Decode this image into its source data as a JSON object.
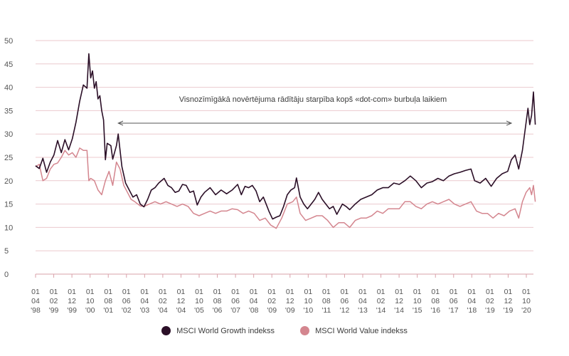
{
  "chart_data": {
    "type": "line",
    "title": "",
    "xlabel": "",
    "ylabel": "",
    "ylim": [
      0,
      50
    ],
    "yticks": [
      0,
      5,
      10,
      15,
      20,
      25,
      30,
      35,
      40,
      45,
      50
    ],
    "grid": true,
    "legend_position": "bottom",
    "annotation": "Visnozīmīgākā novērtējuma rādītāju starpība kopš «dot-com» burbuļa laikiem",
    "x_tick_labels": [
      [
        "01",
        "04",
        "'98"
      ],
      [
        "01",
        "02",
        "'99"
      ],
      [
        "01",
        "12",
        "'99"
      ],
      [
        "01",
        "10",
        "'00"
      ],
      [
        "01",
        "08",
        "'01"
      ],
      [
        "01",
        "06",
        "'02"
      ],
      [
        "01",
        "04",
        "'03"
      ],
      [
        "01",
        "02",
        "'04"
      ],
      [
        "01",
        "12",
        "'04"
      ],
      [
        "01",
        "10",
        "'05"
      ],
      [
        "01",
        "08",
        "'06"
      ],
      [
        "01",
        "06",
        "'07"
      ],
      [
        "01",
        "04",
        "'08"
      ],
      [
        "01",
        "02",
        "'09"
      ],
      [
        "01",
        "12",
        "'09"
      ],
      [
        "01",
        "10",
        "'10"
      ],
      [
        "01",
        "08",
        "'11"
      ],
      [
        "01",
        "06",
        "'12"
      ],
      [
        "01",
        "04",
        "'13"
      ],
      [
        "01",
        "02",
        "'14"
      ],
      [
        "01",
        "12",
        "'14"
      ],
      [
        "01",
        "10",
        "'15"
      ],
      [
        "01",
        "08",
        "'16"
      ],
      [
        "01",
        "06",
        "'17"
      ],
      [
        "01",
        "04",
        "'18"
      ],
      [
        "01",
        "02",
        "'19"
      ],
      [
        "01",
        "12",
        "'19"
      ],
      [
        "01",
        "10",
        "'20"
      ]
    ],
    "x_range": [
      "1998-04",
      "2020-11"
    ],
    "series": [
      {
        "name": "MSCI World Growth indekss",
        "color": "#2b0f27",
        "points": [
          [
            "1998-04",
            23.2
          ],
          [
            "1998-06",
            22.6
          ],
          [
            "1998-08",
            24.8
          ],
          [
            "1998-10",
            21.8
          ],
          [
            "1998-12",
            24.0
          ],
          [
            "1999-02",
            25.5
          ],
          [
            "1999-04",
            28.6
          ],
          [
            "1999-06",
            26.0
          ],
          [
            "1999-08",
            28.8
          ],
          [
            "1999-10",
            26.6
          ],
          [
            "1999-12",
            29.0
          ],
          [
            "2000-02",
            32.5
          ],
          [
            "2000-04",
            37.0
          ],
          [
            "2000-06",
            40.5
          ],
          [
            "2000-08",
            39.8
          ],
          [
            "2000-09",
            47.2
          ],
          [
            "2000-10",
            42.0
          ],
          [
            "2000-11",
            43.5
          ],
          [
            "2000-12",
            39.8
          ],
          [
            "2001-01",
            41.2
          ],
          [
            "2001-02",
            37.5
          ],
          [
            "2001-03",
            38.2
          ],
          [
            "2001-04",
            35.0
          ],
          [
            "2001-05",
            33.0
          ],
          [
            "2001-06",
            24.5
          ],
          [
            "2001-07",
            28.0
          ],
          [
            "2001-09",
            27.5
          ],
          [
            "2001-10",
            24.6
          ],
          [
            "2001-12",
            27.5
          ],
          [
            "2002-01",
            30.0
          ],
          [
            "2002-03",
            23.0
          ],
          [
            "2002-05",
            19.5
          ],
          [
            "2002-07",
            18.0
          ],
          [
            "2002-09",
            16.5
          ],
          [
            "2002-11",
            17.0
          ],
          [
            "2003-01",
            15.0
          ],
          [
            "2003-03",
            14.4
          ],
          [
            "2003-05",
            16.0
          ],
          [
            "2003-07",
            18.0
          ],
          [
            "2003-09",
            18.5
          ],
          [
            "2003-11",
            19.5
          ],
          [
            "2004-02",
            20.5
          ],
          [
            "2004-04",
            19.0
          ],
          [
            "2004-06",
            18.5
          ],
          [
            "2004-08",
            17.5
          ],
          [
            "2004-10",
            17.8
          ],
          [
            "2004-12",
            19.2
          ],
          [
            "2005-02",
            19.0
          ],
          [
            "2005-04",
            17.5
          ],
          [
            "2005-06",
            17.8
          ],
          [
            "2005-08",
            14.8
          ],
          [
            "2005-10",
            16.5
          ],
          [
            "2005-12",
            17.5
          ],
          [
            "2006-03",
            18.5
          ],
          [
            "2006-06",
            17.0
          ],
          [
            "2006-09",
            18.0
          ],
          [
            "2006-12",
            17.2
          ],
          [
            "2007-03",
            18.0
          ],
          [
            "2007-06",
            19.2
          ],
          [
            "2007-08",
            17.0
          ],
          [
            "2007-10",
            18.8
          ],
          [
            "2007-12",
            18.5
          ],
          [
            "2008-02",
            19.0
          ],
          [
            "2008-04",
            17.8
          ],
          [
            "2008-06",
            15.5
          ],
          [
            "2008-08",
            16.5
          ],
          [
            "2008-10",
            14.5
          ],
          [
            "2008-11",
            13.5
          ],
          [
            "2009-01",
            11.8
          ],
          [
            "2009-03",
            12.2
          ],
          [
            "2009-05",
            12.5
          ],
          [
            "2009-07",
            14.5
          ],
          [
            "2009-09",
            17.0
          ],
          [
            "2009-11",
            18.0
          ],
          [
            "2010-01",
            18.5
          ],
          [
            "2010-02",
            20.6
          ],
          [
            "2010-04",
            16.5
          ],
          [
            "2010-06",
            15.0
          ],
          [
            "2010-08",
            14.0
          ],
          [
            "2010-10",
            15.0
          ],
          [
            "2010-12",
            16.0
          ],
          [
            "2011-02",
            17.5
          ],
          [
            "2011-04",
            16.0
          ],
          [
            "2011-06",
            15.0
          ],
          [
            "2011-08",
            14.0
          ],
          [
            "2011-10",
            14.5
          ],
          [
            "2011-12",
            12.8
          ],
          [
            "2012-03",
            15.0
          ],
          [
            "2012-05",
            14.5
          ],
          [
            "2012-07",
            13.8
          ],
          [
            "2012-10",
            15.0
          ],
          [
            "2013-01",
            16.0
          ],
          [
            "2013-04",
            16.5
          ],
          [
            "2013-07",
            17.0
          ],
          [
            "2013-10",
            18.0
          ],
          [
            "2014-01",
            18.5
          ],
          [
            "2014-04",
            18.5
          ],
          [
            "2014-07",
            19.5
          ],
          [
            "2014-10",
            19.2
          ],
          [
            "2015-01",
            20.0
          ],
          [
            "2015-04",
            21.0
          ],
          [
            "2015-07",
            20.0
          ],
          [
            "2015-10",
            18.5
          ],
          [
            "2016-01",
            19.5
          ],
          [
            "2016-04",
            19.8
          ],
          [
            "2016-07",
            20.5
          ],
          [
            "2016-10",
            20.0
          ],
          [
            "2017-01",
            21.0
          ],
          [
            "2017-04",
            21.5
          ],
          [
            "2017-07",
            21.8
          ],
          [
            "2017-10",
            22.2
          ],
          [
            "2018-01",
            22.5
          ],
          [
            "2018-03",
            20.0
          ],
          [
            "2018-06",
            19.5
          ],
          [
            "2018-09",
            20.5
          ],
          [
            "2018-12",
            18.8
          ],
          [
            "2019-03",
            20.5
          ],
          [
            "2019-06",
            21.5
          ],
          [
            "2019-09",
            22.0
          ],
          [
            "2019-11",
            24.5
          ],
          [
            "2020-01",
            25.5
          ],
          [
            "2020-03",
            22.5
          ],
          [
            "2020-05",
            26.5
          ],
          [
            "2020-07",
            32.5
          ],
          [
            "2020-08",
            35.5
          ],
          [
            "2020-09",
            32.0
          ],
          [
            "2020-10",
            34.0
          ],
          [
            "2020-11",
            39.0
          ],
          [
            "2020-12",
            32.0
          ]
        ]
      },
      {
        "name": "MSCI World Value indekss",
        "color": "#d4868f",
        "points": [
          [
            "1998-04",
            23.0
          ],
          [
            "1998-06",
            23.5
          ],
          [
            "1998-08",
            20.0
          ],
          [
            "1998-10",
            20.5
          ],
          [
            "1998-12",
            22.5
          ],
          [
            "1999-02",
            23.5
          ],
          [
            "1999-04",
            23.8
          ],
          [
            "1999-06",
            25.0
          ],
          [
            "1999-08",
            26.5
          ],
          [
            "1999-10",
            25.5
          ],
          [
            "1999-12",
            26.0
          ],
          [
            "2000-02",
            25.0
          ],
          [
            "2000-04",
            27.0
          ],
          [
            "2000-06",
            26.5
          ],
          [
            "2000-08",
            26.5
          ],
          [
            "2000-09",
            20.0
          ],
          [
            "2000-10",
            20.5
          ],
          [
            "2000-12",
            20.0
          ],
          [
            "2001-02",
            18.0
          ],
          [
            "2001-04",
            17.0
          ],
          [
            "2001-06",
            20.0
          ],
          [
            "2001-08",
            22.0
          ],
          [
            "2001-10",
            19.0
          ],
          [
            "2001-12",
            24.0
          ],
          [
            "2002-02",
            22.5
          ],
          [
            "2002-04",
            19.0
          ],
          [
            "2002-06",
            17.5
          ],
          [
            "2002-08",
            16.0
          ],
          [
            "2002-10",
            15.5
          ],
          [
            "2003-01",
            14.6
          ],
          [
            "2003-03",
            14.5
          ],
          [
            "2003-06",
            15.0
          ],
          [
            "2003-09",
            15.5
          ],
          [
            "2003-12",
            15.0
          ],
          [
            "2004-03",
            15.5
          ],
          [
            "2004-06",
            15.0
          ],
          [
            "2004-09",
            14.5
          ],
          [
            "2004-12",
            15.0
          ],
          [
            "2005-03",
            14.5
          ],
          [
            "2005-06",
            13.0
          ],
          [
            "2005-09",
            12.5
          ],
          [
            "2005-12",
            13.0
          ],
          [
            "2006-03",
            13.5
          ],
          [
            "2006-06",
            13.0
          ],
          [
            "2006-09",
            13.5
          ],
          [
            "2006-12",
            13.5
          ],
          [
            "2007-03",
            14.0
          ],
          [
            "2007-06",
            13.8
          ],
          [
            "2007-09",
            13.0
          ],
          [
            "2007-12",
            13.5
          ],
          [
            "2008-03",
            13.0
          ],
          [
            "2008-06",
            11.5
          ],
          [
            "2008-09",
            12.0
          ],
          [
            "2008-12",
            10.5
          ],
          [
            "2009-03",
            9.8
          ],
          [
            "2009-06",
            12.0
          ],
          [
            "2009-09",
            15.0
          ],
          [
            "2009-12",
            15.5
          ],
          [
            "2010-02",
            16.5
          ],
          [
            "2010-04",
            13.0
          ],
          [
            "2010-07",
            11.5
          ],
          [
            "2010-10",
            12.0
          ],
          [
            "2011-01",
            12.5
          ],
          [
            "2011-04",
            12.5
          ],
          [
            "2011-07",
            11.5
          ],
          [
            "2011-10",
            10.0
          ],
          [
            "2012-01",
            11.0
          ],
          [
            "2012-04",
            11.0
          ],
          [
            "2012-07",
            10.0
          ],
          [
            "2012-10",
            11.5
          ],
          [
            "2013-01",
            12.0
          ],
          [
            "2013-04",
            12.0
          ],
          [
            "2013-07",
            12.5
          ],
          [
            "2013-10",
            13.5
          ],
          [
            "2014-01",
            13.0
          ],
          [
            "2014-04",
            14.0
          ],
          [
            "2014-07",
            14.0
          ],
          [
            "2014-10",
            14.0
          ],
          [
            "2015-01",
            15.5
          ],
          [
            "2015-04",
            15.5
          ],
          [
            "2015-07",
            14.5
          ],
          [
            "2015-10",
            14.0
          ],
          [
            "2016-01",
            15.0
          ],
          [
            "2016-04",
            15.5
          ],
          [
            "2016-07",
            15.0
          ],
          [
            "2016-10",
            15.5
          ],
          [
            "2017-01",
            16.0
          ],
          [
            "2017-04",
            15.0
          ],
          [
            "2017-07",
            14.5
          ],
          [
            "2017-10",
            15.0
          ],
          [
            "2018-01",
            15.5
          ],
          [
            "2018-04",
            13.5
          ],
          [
            "2018-07",
            13.0
          ],
          [
            "2018-10",
            13.0
          ],
          [
            "2019-01",
            12.0
          ],
          [
            "2019-04",
            13.0
          ],
          [
            "2019-07",
            12.5
          ],
          [
            "2019-10",
            13.5
          ],
          [
            "2020-01",
            14.0
          ],
          [
            "2020-03",
            12.0
          ],
          [
            "2020-05",
            15.5
          ],
          [
            "2020-07",
            17.5
          ],
          [
            "2020-09",
            18.5
          ],
          [
            "2020-10",
            17.0
          ],
          [
            "2020-11",
            19.0
          ],
          [
            "2020-12",
            15.5
          ]
        ]
      }
    ]
  }
}
